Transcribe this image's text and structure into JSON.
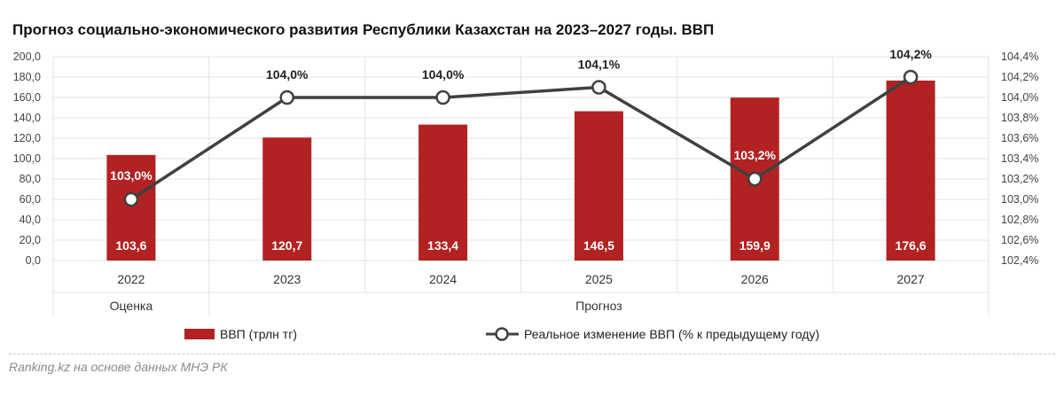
{
  "title": "Прогноз социально-экономического развития Республики Казахстан на 2023–2027 годы. ВВП",
  "source": "Ranking.kz на основе данных МНЭ РК",
  "colors": {
    "bar": "#b22222",
    "line": "#404040",
    "marker_fill": "#ffffff",
    "grid": "#e3e3e3"
  },
  "chart_data": {
    "type": "bar",
    "categories": [
      "2022",
      "2023",
      "2024",
      "2025",
      "2026",
      "2027"
    ],
    "groups": [
      {
        "label": "Оценка",
        "categories": [
          "2022"
        ]
      },
      {
        "label": "Прогноз",
        "categories": [
          "2023",
          "2024",
          "2025",
          "2026",
          "2027"
        ]
      }
    ],
    "series": [
      {
        "name": "ВВП (трлн тг)",
        "type": "bar",
        "axis": "left",
        "values": [
          103.6,
          120.7,
          133.4,
          146.5,
          159.9,
          176.6
        ],
        "labels": [
          "103,6",
          "120,7",
          "133,4",
          "146,5",
          "159,9",
          "176,6"
        ]
      },
      {
        "name": "Реальное изменение ВВП (% к предыдущему году)",
        "type": "line",
        "axis": "right",
        "values": [
          103.0,
          104.0,
          104.0,
          104.1,
          103.2,
          104.2
        ],
        "labels": [
          "103,0%",
          "104,0%",
          "104,0%",
          "104,1%",
          "103,2%",
          "104,2%"
        ]
      }
    ],
    "y_left": {
      "range": [
        0,
        200
      ],
      "ticks": [
        0,
        20,
        40,
        60,
        80,
        100,
        120,
        140,
        160,
        180,
        200
      ],
      "tick_labels": [
        "0,0",
        "20,0",
        "40,0",
        "60,0",
        "80,0",
        "100,0",
        "120,0",
        "140,0",
        "160,0",
        "180,0",
        "200,0"
      ]
    },
    "y_right": {
      "range": [
        102.4,
        104.4
      ],
      "ticks": [
        102.4,
        102.6,
        102.8,
        103.0,
        103.2,
        103.4,
        103.6,
        103.8,
        104.0,
        104.2,
        104.4
      ],
      "tick_labels": [
        "102,4%",
        "102,6%",
        "102,8%",
        "103,0%",
        "103,2%",
        "103,4%",
        "103,6%",
        "103,8%",
        "104,0%",
        "104,2%",
        "104,4%"
      ]
    },
    "grid": true,
    "legend_position": "bottom"
  }
}
